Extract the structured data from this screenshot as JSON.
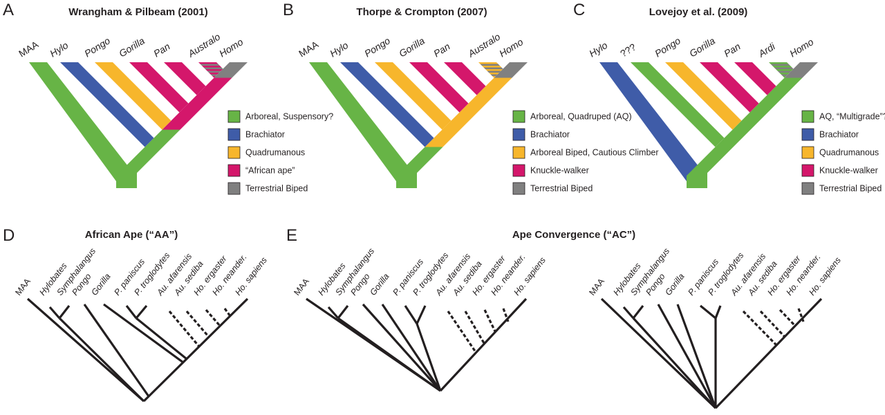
{
  "panels": [
    {
      "letter": "A",
      "title": "Wrangham & Pilbeam (2001)",
      "taxa": [
        "MAA",
        "Hylo",
        "Pongo",
        "Gorilla",
        "Pan",
        "Australo",
        "Homo"
      ],
      "legend": [
        "Arboreal, Suspensory?",
        "Brachiator",
        "Quadrumanous",
        "“African ape”",
        "Terrestrial Biped"
      ]
    },
    {
      "letter": "B",
      "title": "Thorpe & Crompton (2007)",
      "taxa": [
        "MAA",
        "Hylo",
        "Pongo",
        "Gorilla",
        "Pan",
        "Australo",
        "Homo"
      ],
      "legend": [
        "Arboreal, Quadruped (AQ)",
        "Brachiator",
        "Arboreal Biped, Cautious Climber",
        "Knuckle-walker",
        "Terrestrial Biped"
      ]
    },
    {
      "letter": "C",
      "title": "Lovejoy et al. (2009)",
      "taxa": [
        "Hylo",
        "???",
        "Pongo",
        "Gorilla",
        "Pan",
        "Ardi",
        "Homo"
      ],
      "legend": [
        "AQ, “Multigrade”?",
        "Brachiator",
        "Quadrumanous",
        "Knuckle-walker",
        "Terrestrial Biped"
      ]
    },
    {
      "letter": "D",
      "title": "African Ape (“AA”)",
      "trees": [
        {
          "taxa": [
            "MAA",
            "Hylobates",
            "Symphalangus",
            "Pongo",
            "Gorilla",
            "P. paniscus",
            "P. troglodytes",
            "Au. afarensis",
            "Au. sediba",
            "Ho. ergaster",
            "Ho. neander.",
            "Ho. sapiens"
          ]
        }
      ]
    },
    {
      "letter": "E",
      "title": "Ape Convergence (“AC”)",
      "trees": [
        {
          "taxa": [
            "MAA",
            "Hylobates",
            "Symphalangus",
            "Pongo",
            "Gorilla",
            "P. paniscus",
            "P. troglodytes",
            "Au. afarensis",
            "Au. sediba",
            "Ho. ergaster",
            "Ho. neander.",
            "Ho. sapiens"
          ]
        },
        {
          "taxa": [
            "MAA",
            "Hylobates",
            "Symphalangus",
            "Pongo",
            "Gorilla",
            "P. paniscus",
            "P. troglodytes",
            "Au. afarensis",
            "Au. sediba",
            "Ho. ergaster",
            "Ho. neander.",
            "Ho. sapiens"
          ]
        }
      ]
    }
  ]
}
